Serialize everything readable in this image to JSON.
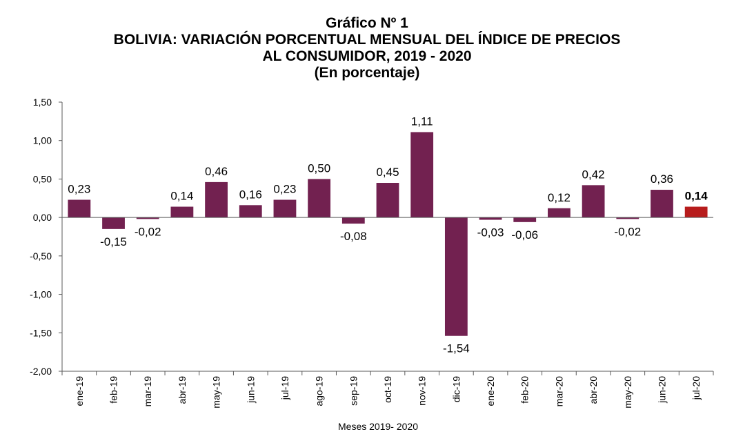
{
  "chart_data": {
    "type": "bar",
    "title_lines": [
      "Gráfico Nº 1",
      "BOLIVIA: VARIACIÓN PORCENTUAL MENSUAL DEL ÍNDICE DE PRECIOS",
      "AL CONSUMIDOR, 2019 - 2020",
      "(En porcentaje)"
    ],
    "xlabel": "Meses 2019- 2020",
    "ylabel": "",
    "ylim": [
      -2.0,
      1.5
    ],
    "yticks": [
      "1,50",
      "1,00",
      "0,50",
      "0,00",
      "-0,50",
      "-1,00",
      "-1,50",
      "-2,00"
    ],
    "ytick_values": [
      1.5,
      1.0,
      0.5,
      0.0,
      -0.5,
      -1.0,
      -1.5,
      -2.0
    ],
    "categories": [
      "ene-19",
      "feb-19",
      "mar-19",
      "abr-19",
      "may-19",
      "jun-19",
      "jul-19",
      "ago-19",
      "sep-19",
      "oct-19",
      "nov-19",
      "dic-19",
      "ene-20",
      "feb-20",
      "mar-20",
      "abr-20",
      "may-20",
      "jun-20",
      "jul-20"
    ],
    "values": [
      0.23,
      -0.15,
      -0.02,
      0.14,
      0.46,
      0.16,
      0.23,
      0.5,
      -0.08,
      0.45,
      1.11,
      -1.54,
      -0.03,
      -0.06,
      0.12,
      0.42,
      -0.02,
      0.36,
      0.14
    ],
    "data_labels": [
      "0,23",
      "-0,15",
      "-0,02",
      "0,14",
      "0,46",
      "0,16",
      "0,23",
      "0,50",
      "-0,08",
      "0,45",
      "1,11",
      "-1,54",
      "-0,03",
      "-0,06",
      "0,12",
      "0,42",
      "-0,02",
      "0,36",
      "0,14"
    ],
    "highlight_index": 18,
    "colors": {
      "bar": "#722150",
      "highlight": "#b71c1c",
      "axis": "#595959"
    },
    "grid": false
  }
}
